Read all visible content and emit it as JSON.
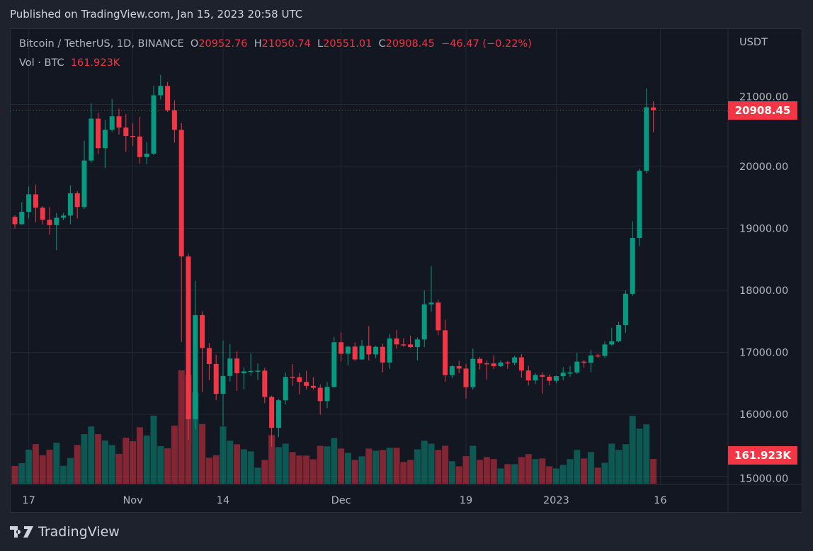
{
  "header": {
    "published": "Published on TradingView.com, Jan 15, 2023 20:58 UTC"
  },
  "legend": {
    "symbol": "Bitcoin / TetherUS, 1D, BINANCE",
    "o_label": "O",
    "o": "20952.76",
    "h_label": "H",
    "h": "21050.74",
    "l_label": "L",
    "l": "20551.01",
    "c_label": "C",
    "c": "20908.45",
    "change": "−46.47 (−0.22%)",
    "vol_label": "Vol · BTC",
    "vol": "161.923K"
  },
  "axis": {
    "unit": "USDT",
    "y_ticks": [
      "21000.00",
      "20000.00",
      "19000.00",
      "18000.00",
      "17000.00",
      "16000.00",
      "15000.00"
    ],
    "x_ticks": [
      {
        "label": "17",
        "date": "2022-10-17"
      },
      {
        "label": "Nov",
        "date": "2022-11-01"
      },
      {
        "label": "14",
        "date": "2022-11-14"
      },
      {
        "label": "Dec",
        "date": "2022-12-01"
      },
      {
        "label": "19",
        "date": "2022-12-19"
      },
      {
        "label": "2023",
        "date": "2023-01-01"
      },
      {
        "label": "16",
        "date": "2023-01-16"
      }
    ],
    "price_tag": "20908.45",
    "volume_tag": "161.923K"
  },
  "footer": {
    "brand": "TradingView"
  },
  "colors": {
    "up": "#089981",
    "down": "#f23645",
    "background": "#131722"
  },
  "chart_data": {
    "type": "candlestick",
    "ylabel": "USDT",
    "ylim": [
      14900,
      21700
    ],
    "grid": true,
    "volume_unit": "K BTC",
    "columns": [
      "date",
      "open",
      "high",
      "low",
      "close",
      "volume"
    ],
    "candles": [
      [
        "2022-10-15",
        19185,
        19212,
        18999,
        19067,
        116
      ],
      [
        "2022-10-16",
        19067,
        19423,
        19062,
        19268,
        134
      ],
      [
        "2022-10-17",
        19268,
        19676,
        19160,
        19550,
        223
      ],
      [
        "2022-10-18",
        19550,
        19706,
        19100,
        19334,
        259
      ],
      [
        "2022-10-19",
        19334,
        19360,
        19066,
        19139,
        186
      ],
      [
        "2022-10-20",
        19139,
        19345,
        18900,
        19053,
        223
      ],
      [
        "2022-10-21",
        19053,
        19250,
        18650,
        19172,
        268
      ],
      [
        "2022-10-22",
        19172,
        19249,
        19133,
        19207,
        117
      ],
      [
        "2022-10-23",
        19207,
        19695,
        19068,
        19567,
        168
      ],
      [
        "2022-10-24",
        19567,
        19601,
        19160,
        19345,
        253
      ],
      [
        "2022-10-25",
        19345,
        20415,
        19316,
        20095,
        324
      ],
      [
        "2022-10-26",
        20095,
        21020,
        20061,
        20771,
        374
      ],
      [
        "2022-10-27",
        20771,
        20865,
        20200,
        20295,
        324
      ],
      [
        "2022-10-28",
        20295,
        20750,
        19970,
        20591,
        283
      ],
      [
        "2022-10-29",
        20591,
        21085,
        20560,
        20809,
        253
      ],
      [
        "2022-10-30",
        20809,
        20931,
        20514,
        20627,
        195
      ],
      [
        "2022-10-31",
        20627,
        20845,
        20237,
        20491,
        301
      ],
      [
        "2022-11-01",
        20491,
        20700,
        20330,
        20483,
        278
      ],
      [
        "2022-11-02",
        20483,
        20800,
        20048,
        20151,
        369
      ],
      [
        "2022-11-03",
        20151,
        20393,
        20033,
        20207,
        315
      ],
      [
        "2022-11-04",
        20207,
        21302,
        20180,
        21148,
        445
      ],
      [
        "2022-11-05",
        21148,
        21480,
        21080,
        21300,
        246
      ],
      [
        "2022-11-06",
        21300,
        21365,
        20880,
        20905,
        232
      ],
      [
        "2022-11-07",
        20905,
        21069,
        20386,
        20591,
        380
      ],
      [
        "2022-11-08",
        20591,
        20700,
        17166,
        18547,
        741
      ],
      [
        "2022-11-09",
        18547,
        18590,
        15588,
        15922,
        714
      ],
      [
        "2022-11-10",
        15922,
        18154,
        15754,
        17601,
        597
      ],
      [
        "2022-11-11",
        17601,
        17660,
        16361,
        17070,
        390
      ],
      [
        "2022-11-12",
        17070,
        17150,
        16551,
        16812,
        170
      ],
      [
        "2022-11-13",
        16812,
        16960,
        16230,
        16330,
        186
      ],
      [
        "2022-11-14",
        16330,
        17190,
        15815,
        16619,
        374
      ],
      [
        "2022-11-15",
        16619,
        17134,
        16527,
        16900,
        281
      ],
      [
        "2022-11-16",
        16900,
        17015,
        16378,
        16663,
        258
      ],
      [
        "2022-11-17",
        16663,
        16760,
        16401,
        16692,
        225
      ],
      [
        "2022-11-18",
        16692,
        16984,
        16623,
        16700,
        211
      ],
      [
        "2022-11-19",
        16700,
        16820,
        16551,
        16705,
        105
      ],
      [
        "2022-11-20",
        16705,
        16750,
        16180,
        16280,
        156
      ],
      [
        "2022-11-21",
        16280,
        16300,
        15476,
        15781,
        318
      ],
      [
        "2022-11-22",
        15781,
        16253,
        15632,
        16226,
        239
      ],
      [
        "2022-11-23",
        16226,
        16674,
        16160,
        16603,
        262
      ],
      [
        "2022-11-24",
        16603,
        16812,
        16458,
        16599,
        207
      ],
      [
        "2022-11-25",
        16599,
        16666,
        16321,
        16522,
        184
      ],
      [
        "2022-11-26",
        16522,
        16700,
        16400,
        16459,
        184
      ],
      [
        "2022-11-27",
        16459,
        16600,
        16400,
        16428,
        160
      ],
      [
        "2022-11-28",
        16428,
        16483,
        15995,
        16213,
        248
      ],
      [
        "2022-11-29",
        16213,
        16525,
        16100,
        16442,
        244
      ],
      [
        "2022-11-30",
        16442,
        17249,
        16428,
        17163,
        299
      ],
      [
        "2022-12-01",
        17163,
        17320,
        16855,
        16977,
        230
      ],
      [
        "2022-12-02",
        16977,
        17105,
        16787,
        17092,
        202
      ],
      [
        "2022-12-03",
        17092,
        17159,
        16860,
        16885,
        156
      ],
      [
        "2022-12-04",
        16885,
        17202,
        16878,
        17105,
        179
      ],
      [
        "2022-12-05",
        17105,
        17424,
        16867,
        16967,
        230
      ],
      [
        "2022-12-06",
        16967,
        17107,
        16906,
        17089,
        216
      ],
      [
        "2022-12-07",
        17089,
        17142,
        16679,
        16836,
        221
      ],
      [
        "2022-12-08",
        16836,
        17299,
        16733,
        17224,
        235
      ],
      [
        "2022-12-09",
        17224,
        17360,
        17060,
        17128,
        235
      ],
      [
        "2022-12-10",
        17128,
        17227,
        17091,
        17127,
        142
      ],
      [
        "2022-12-11",
        17127,
        17270,
        17071,
        17085,
        156
      ],
      [
        "2022-12-12",
        17085,
        17241,
        16871,
        17208,
        225
      ],
      [
        "2022-12-13",
        17208,
        18000,
        17085,
        17774,
        281
      ],
      [
        "2022-12-14",
        17774,
        18387,
        17660,
        17803,
        262
      ],
      [
        "2022-12-15",
        17803,
        17846,
        17275,
        17356,
        221
      ],
      [
        "2022-12-16",
        17356,
        17531,
        16527,
        16632,
        248
      ],
      [
        "2022-12-17",
        16632,
        16796,
        16584,
        16776,
        147
      ],
      [
        "2022-12-18",
        16776,
        16863,
        16663,
        16738,
        114
      ],
      [
        "2022-12-19",
        16738,
        16815,
        16256,
        16438,
        180
      ],
      [
        "2022-12-20",
        16438,
        17061,
        16397,
        16895,
        248
      ],
      [
        "2022-12-21",
        16895,
        16925,
        16723,
        16824,
        156
      ],
      [
        "2022-12-22",
        16824,
        16868,
        16559,
        16821,
        174
      ],
      [
        "2022-12-23",
        16821,
        16955,
        16731,
        16778,
        161
      ],
      [
        "2022-12-24",
        16778,
        16869,
        16761,
        16837,
        100
      ],
      [
        "2022-12-25",
        16837,
        16860,
        16733,
        16830,
        128
      ],
      [
        "2022-12-26",
        16830,
        16943,
        16791,
        16919,
        128
      ],
      [
        "2022-12-27",
        16919,
        16972,
        16592,
        16707,
        174
      ],
      [
        "2022-12-28",
        16707,
        16785,
        16465,
        16547,
        194
      ],
      [
        "2022-12-29",
        16547,
        16664,
        16488,
        16633,
        161
      ],
      [
        "2022-12-30",
        16633,
        16677,
        16333,
        16607,
        165
      ],
      [
        "2022-12-31",
        16607,
        16644,
        16470,
        16542,
        114
      ],
      [
        "2023-01-01",
        16542,
        16628,
        16499,
        16616,
        100
      ],
      [
        "2023-01-02",
        16616,
        16760,
        16548,
        16672,
        123
      ],
      [
        "2023-01-03",
        16672,
        16778,
        16605,
        16675,
        161
      ],
      [
        "2023-01-04",
        16675,
        16991,
        16652,
        16850,
        221
      ],
      [
        "2023-01-05",
        16850,
        16879,
        16753,
        16831,
        165
      ],
      [
        "2023-01-06",
        16831,
        17041,
        16679,
        16950,
        207
      ],
      [
        "2023-01-07",
        16950,
        16981,
        16908,
        16943,
        105
      ],
      [
        "2023-01-08",
        16943,
        17176,
        16911,
        17127,
        137
      ],
      [
        "2023-01-09",
        17127,
        17398,
        17104,
        17178,
        262
      ],
      [
        "2023-01-10",
        17178,
        17491,
        17162,
        17440,
        221
      ],
      [
        "2023-01-11",
        17440,
        18000,
        17315,
        17944,
        258
      ],
      [
        "2023-01-12",
        17944,
        19117,
        17910,
        18846,
        443
      ],
      [
        "2023-01-13",
        18846,
        19964,
        18714,
        19930,
        360
      ],
      [
        "2023-01-14",
        19930,
        21258,
        19888,
        20954,
        388
      ],
      [
        "2023-01-15",
        20952.76,
        21050.74,
        20551.01,
        20908.45,
        161.923
      ]
    ]
  }
}
